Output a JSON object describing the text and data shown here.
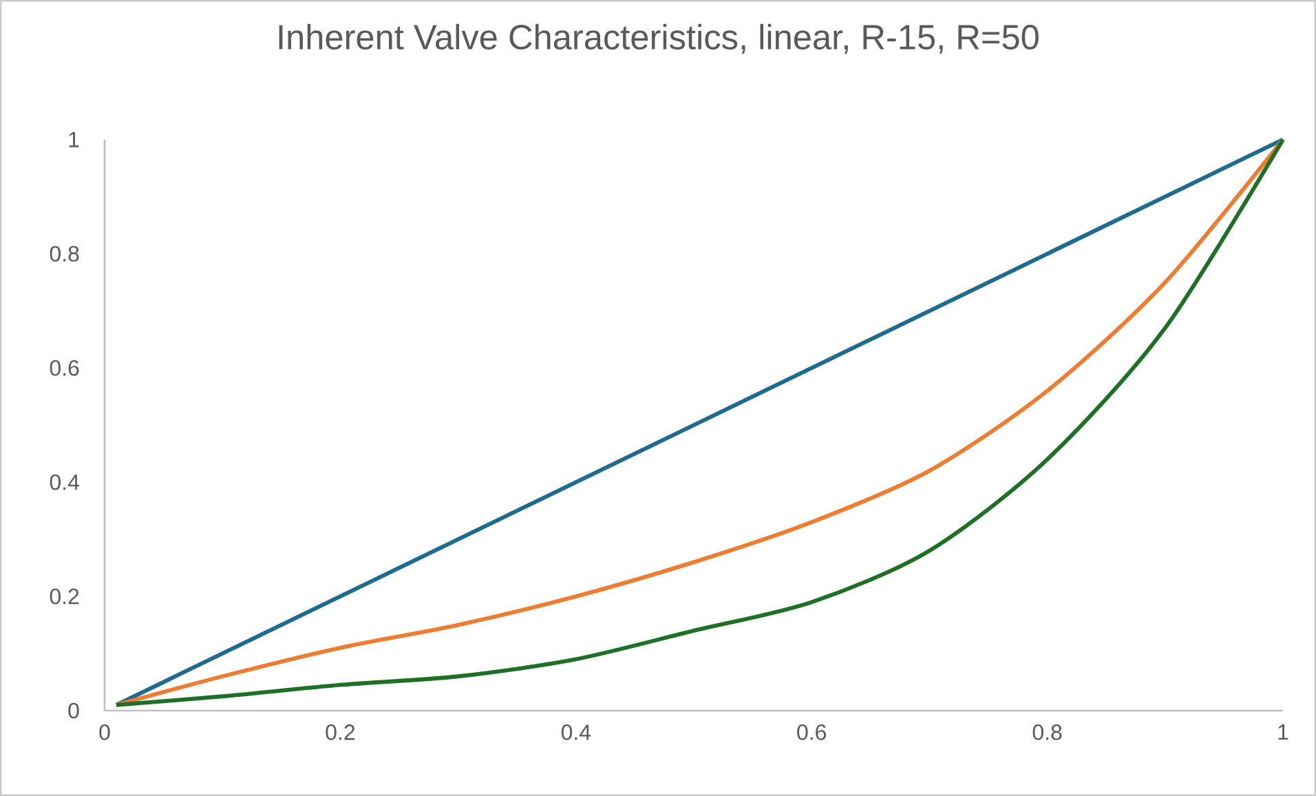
{
  "chart_data": {
    "type": "line",
    "title": "Inherent Valve Characteristics, linear, R-15, R=50",
    "xlim": [
      0,
      1
    ],
    "ylim": [
      0,
      1
    ],
    "xticks": [
      0,
      0.2,
      0.4,
      0.6,
      0.8,
      1
    ],
    "yticks": [
      0,
      0.2,
      0.4,
      0.6,
      0.8,
      1
    ],
    "grid": false,
    "marker": "none",
    "line_style": "solid",
    "series": [
      {
        "color": "#1f6b8e",
        "x": [
          0.01,
          1
        ],
        "values": [
          0.01,
          1
        ]
      },
      {
        "color": "#ee7d31",
        "x": [
          0.01,
          0.1,
          0.2,
          0.3,
          0.4,
          0.5,
          0.6,
          0.7,
          0.8,
          0.9,
          1
        ],
        "values": [
          0.01,
          0.06,
          0.11,
          0.15,
          0.2,
          0.26,
          0.33,
          0.42,
          0.56,
          0.75,
          1
        ]
      },
      {
        "color": "#1e7026",
        "x": [
          0.01,
          0.1,
          0.2,
          0.3,
          0.4,
          0.5,
          0.6,
          0.7,
          0.8,
          0.9,
          1
        ],
        "values": [
          0.01,
          0.025,
          0.045,
          0.06,
          0.09,
          0.14,
          0.19,
          0.28,
          0.44,
          0.67,
          1
        ]
      }
    ]
  }
}
